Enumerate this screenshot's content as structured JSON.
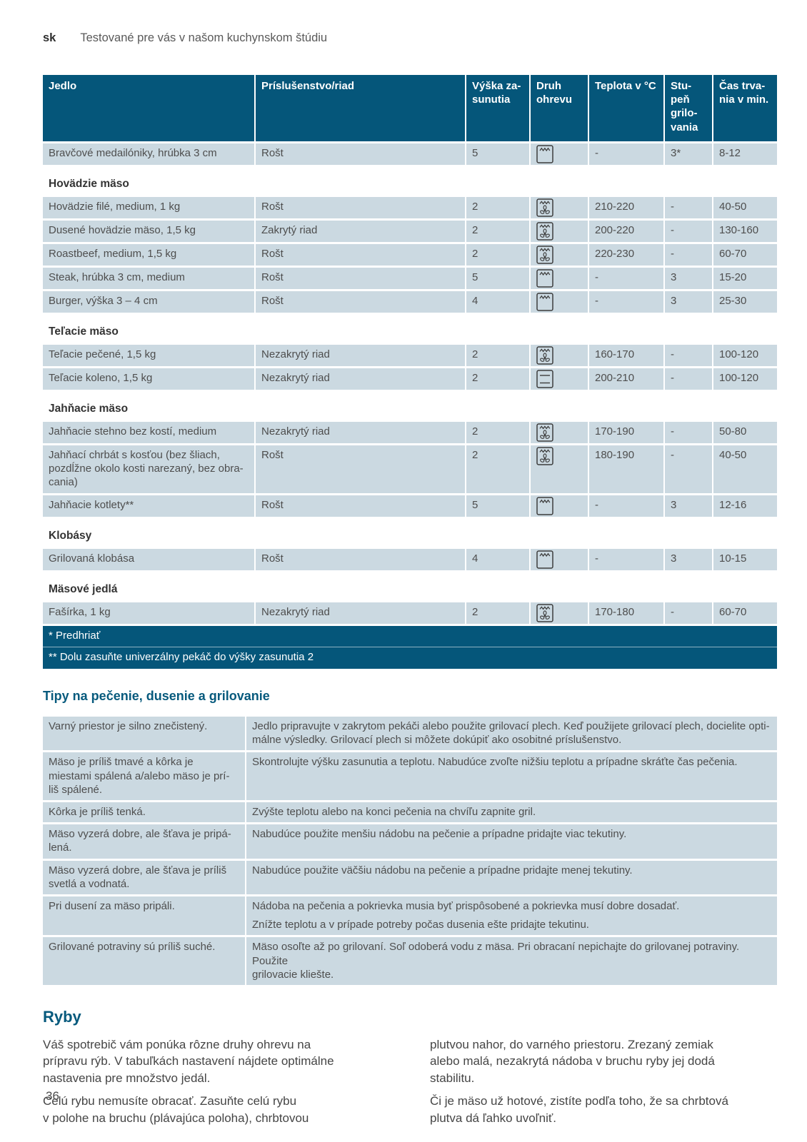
{
  "header": {
    "lang": "sk",
    "title": "Testované pre vás v našom kuchynskom štúdiu"
  },
  "colors": {
    "accent_band": "#05567a",
    "row_background": "#cbd9e1",
    "heading_text": "#075a7d"
  },
  "icons": {
    "grill": "grill-icon",
    "circo": "hot-air-grill-icon",
    "topbottom": "top-bottom-heat-icon"
  },
  "main_table": {
    "columns": [
      "Jedlo",
      "Príslušenstvo/riad",
      "Výška za-\nsunutia",
      "Druh\nohrevu",
      "Teplota v °C",
      "Stu-\npeň\ngrilo-\nvania",
      "Čas trva-\nnia v min."
    ],
    "rows": [
      {
        "type": "item",
        "food": "Bravčové medailóniky, hrúbka 3 cm",
        "dish": "Rošt",
        "level": "5",
        "heat": "grill",
        "temp": "-",
        "grill": "3*",
        "time": "8-12"
      },
      {
        "type": "section",
        "label": "Hovädzie mäso"
      },
      {
        "type": "item",
        "food": "Hovädzie filé, medium, 1 kg",
        "dish": "Rošt",
        "level": "2",
        "heat": "circo",
        "temp": "210-220",
        "grill": "-",
        "time": "40-50"
      },
      {
        "type": "item",
        "food": "Dusené hovädzie mäso, 1,5 kg",
        "dish": "Zakrytý riad",
        "level": "2",
        "heat": "circo",
        "temp": "200-220",
        "grill": "-",
        "time": "130-160"
      },
      {
        "type": "item",
        "food": "Roastbeef, medium, 1,5 kg",
        "dish": "Rošt",
        "level": "2",
        "heat": "circo",
        "temp": "220-230",
        "grill": "-",
        "time": "60-70"
      },
      {
        "type": "item",
        "food": "Steak, hrúbka 3 cm, medium",
        "dish": "Rošt",
        "level": "5",
        "heat": "grill",
        "temp": "-",
        "grill": "3",
        "time": "15-20"
      },
      {
        "type": "item",
        "food": "Burger, výška 3 – 4 cm",
        "dish": "Rošt",
        "level": "4",
        "heat": "grill",
        "temp": "-",
        "grill": "3",
        "time": "25-30"
      },
      {
        "type": "section",
        "label": "Teľacie mäso"
      },
      {
        "type": "item",
        "food": "Teľacie pečené, 1,5 kg",
        "dish": "Nezakrytý riad",
        "level": "2",
        "heat": "circo",
        "temp": "160-170",
        "grill": "-",
        "time": "100-120"
      },
      {
        "type": "item",
        "food": "Teľacie koleno, 1,5 kg",
        "dish": "Nezakrytý riad",
        "level": "2",
        "heat": "topbottom",
        "temp": "200-210",
        "grill": "-",
        "time": "100-120"
      },
      {
        "type": "section",
        "label": "Jahňacie mäso"
      },
      {
        "type": "item",
        "food": "Jahňacie stehno bez kostí, medium",
        "dish": "Nezakrytý riad",
        "level": "2",
        "heat": "circo",
        "temp": "170-190",
        "grill": "-",
        "time": "50-80"
      },
      {
        "type": "item",
        "food": "Jahňací chrbát s kosťou (bez šliach,\npozdĺžne okolo kosti narezaný, bez obra-\ncania)",
        "dish": "Rošt",
        "level": "2",
        "heat": "circo",
        "temp": "180-190",
        "grill": "-",
        "time": "40-50"
      },
      {
        "type": "item",
        "food": "Jahňacie kotlety**",
        "dish": "Rošt",
        "level": "5",
        "heat": "grill",
        "temp": "-",
        "grill": "3",
        "time": "12-16"
      },
      {
        "type": "section",
        "label": "Klobásy"
      },
      {
        "type": "item",
        "food": "Grilovaná klobása",
        "dish": "Rošt",
        "level": "4",
        "heat": "grill",
        "temp": "-",
        "grill": "3",
        "time": "10-15"
      },
      {
        "type": "section",
        "label": "Mäsové jedlá"
      },
      {
        "type": "item",
        "food": "Fašírka, 1 kg",
        "dish": "Nezakrytý riad",
        "level": "2",
        "heat": "circo",
        "temp": "170-180",
        "grill": "-",
        "time": "60-70"
      }
    ],
    "footnotes": [
      "* Predhriať",
      "** Dolu zasuňte univerzálny pekáč do výšky zasunutia 2"
    ]
  },
  "tips": {
    "heading": "Tipy na pečenie, dusenie a grilovanie",
    "rows": [
      {
        "problem": "Varný priestor je silno znečistený.",
        "solutions": [
          "Jedlo pripravujte v zakrytom pekáči alebo použite grilovací plech. Keď použijete grilovací plech, docielite opti-\nmálne výsledky. Grilovací plech si môžete dokúpiť ako osobitné príslušenstvo."
        ]
      },
      {
        "problem": "Mäso je príliš tmavé a kôrka je\nmiestami spálená a/alebo mäso je prí-\nliš spálené.",
        "solutions": [
          "Skontrolujte výšku zasunutia a teplotu. Nabudúce zvoľte nižšiu teplotu a prípadne skráťte čas pečenia."
        ]
      },
      {
        "problem": "Kôrka je príliš tenká.",
        "solutions": [
          "Zvýšte teplotu alebo na konci pečenia na chvíľu zapnite gril."
        ]
      },
      {
        "problem": "Mäso vyzerá dobre, ale šťava je pripá-\nlená.",
        "solutions": [
          "Nabudúce použite menšiu nádobu na pečenie a prípadne pridajte viac tekutiny."
        ]
      },
      {
        "problem": "Mäso vyzerá dobre, ale šťava je príliš\nsvetlá a vodnatá.",
        "solutions": [
          "Nabudúce použite väčšiu nádobu na pečenie a prípadne pridajte menej tekutiny."
        ]
      },
      {
        "problem": "Pri dusení za mäso pripáli.",
        "solutions": [
          "Nádoba na pečenia a pokrievka musia byť prispôsobené a pokrievka musí dobre dosadať.",
          "Znížte teplotu a v prípade potreby počas dusenia ešte pridajte tekutinu."
        ]
      },
      {
        "problem": "Grilované potraviny sú príliš suché.",
        "solutions": [
          "Mäso osoľte až po grilovaní. Soľ odoberá vodu z mäsa. Pri obracaní nepichajte do grilovanej potraviny. Použite\ngrilovacie kliešte."
        ]
      }
    ]
  },
  "fish": {
    "heading": "Ryby",
    "left_paragraphs": [
      "Váš spotrebič vám ponúka rôzne druhy ohrevu na\nprípravu rýb. V tabuľkách nastavení nájdete optimálne\nnastavenia pre množstvo jedál.",
      "Celú rybu nemusíte obracať. Zasuňte celú rybu\nv polohe na bruchu (plávajúca poloha), chrbtovou"
    ],
    "right_paragraphs": [
      "plutvou nahor, do varného priestoru. Zrezaný zemiak\nalebo malá, nezakrytá nádoba v bruchu ryby jej dodá\nstabilitu.",
      "Či je mäso už hotové, zistíte podľa toho, že sa chrbtová\nplutva dá ľahko uvoľniť."
    ]
  },
  "footer": {
    "page_number": "36"
  }
}
